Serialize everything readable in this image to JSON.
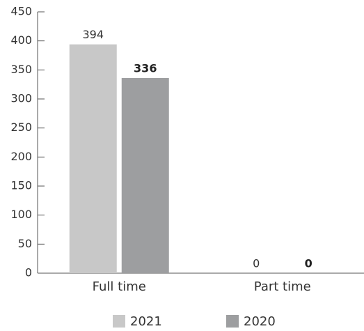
{
  "chart_data": {
    "type": "bar",
    "categories": [
      "Full time",
      "Part time"
    ],
    "series": [
      {
        "name": "2021",
        "color": "#c8c8c8",
        "values": [
          394,
          0
        ]
      },
      {
        "name": "2020",
        "color": "#9d9ea0",
        "values": [
          336,
          0
        ]
      }
    ],
    "ylim": [
      0,
      450
    ],
    "yticks": [
      0,
      50,
      100,
      150,
      200,
      250,
      300,
      350,
      400,
      450
    ],
    "legend": "bottom"
  }
}
